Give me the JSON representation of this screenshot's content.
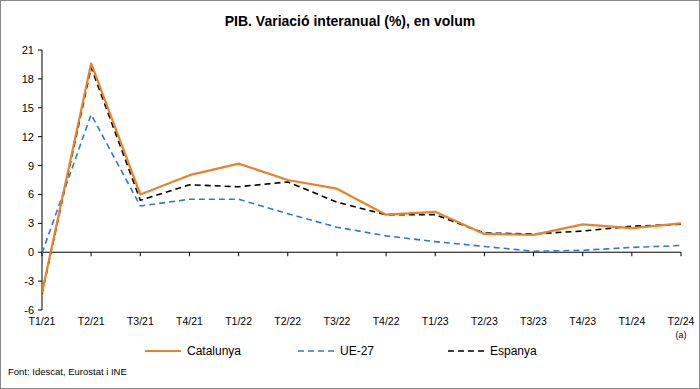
{
  "chart_data": {
    "type": "line",
    "title": "PIB. Variació interanual (%), en volum",
    "categories": [
      "T1/21",
      "T2/21",
      "T3/21",
      "T4/21",
      "T1/22",
      "T2/22",
      "T3/22",
      "T4/22",
      "T1/23",
      "T2/23",
      "T3/23",
      "T4/23",
      "T1/24",
      "T2/24"
    ],
    "series": [
      {
        "name": "Catalunya",
        "color": "#e8822b",
        "line_style": "solid",
        "values": [
          -4.2,
          19.6,
          6.0,
          8.0,
          9.2,
          7.5,
          6.6,
          3.9,
          4.2,
          1.9,
          1.8,
          2.9,
          2.5,
          3.0
        ]
      },
      {
        "name": "UE-27",
        "color": "#2e7bc4",
        "line_style": "dashed",
        "values": [
          -0.1,
          14.3,
          4.8,
          5.5,
          5.5,
          4.0,
          2.6,
          1.7,
          1.1,
          0.6,
          0.1,
          0.2,
          0.5,
          0.7
        ]
      },
      {
        "name": "Espanya",
        "color": "#000000",
        "line_style": "dashed",
        "values": [
          -4.3,
          19.2,
          5.4,
          7.0,
          6.8,
          7.3,
          5.2,
          3.9,
          3.9,
          2.0,
          1.9,
          2.2,
          2.7,
          2.9
        ]
      }
    ],
    "ylim": [
      -6,
      21
    ],
    "yticks": [
      -6,
      -3,
      0,
      3,
      6,
      9,
      12,
      15,
      18,
      21
    ],
    "grid": false,
    "legend": "bottom",
    "annotations": [
      "(a)"
    ],
    "source": "Font: Idescat, Eurostat i INE"
  }
}
